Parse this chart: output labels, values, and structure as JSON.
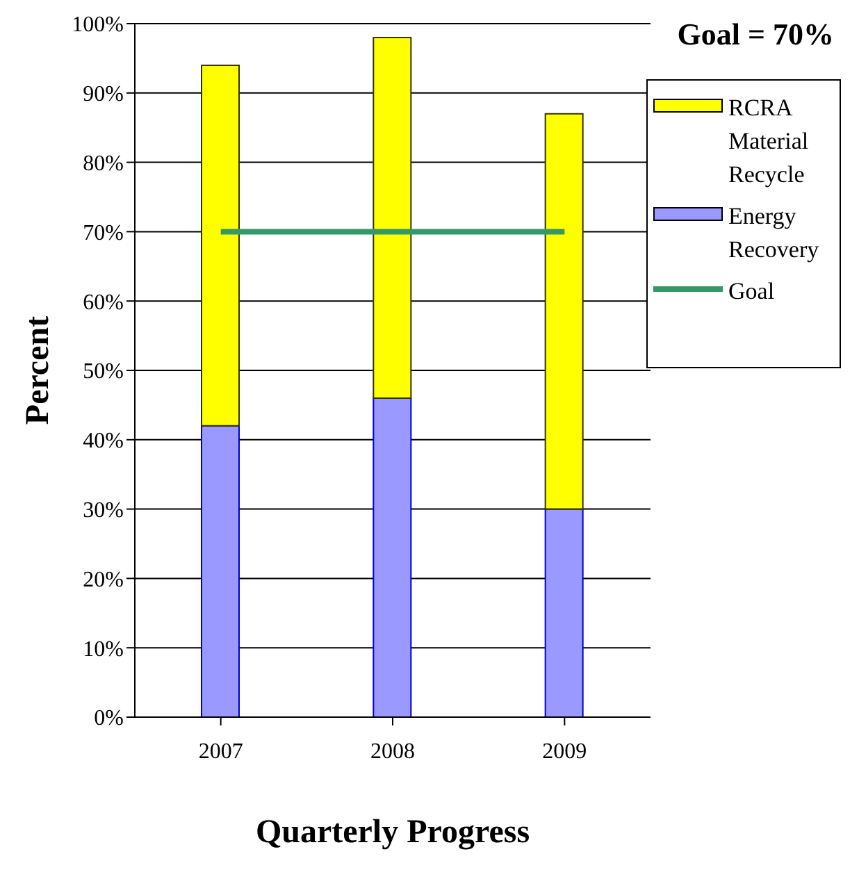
{
  "chart_data": {
    "type": "bar",
    "xlabel": "Quarterly Progress",
    "ylabel": "Percent",
    "annotations": [
      "Goal = 70%"
    ],
    "categories": [
      "2007",
      "2008",
      "2009"
    ],
    "stacked": true,
    "series": [
      {
        "name": "Energy Recovery",
        "color": "#9999ff",
        "values": [
          42,
          46,
          30
        ]
      },
      {
        "name": "RCRA Material Recycle",
        "color": "#ffff00",
        "values": [
          52,
          52,
          57
        ]
      },
      {
        "name": "Goal",
        "type": "line",
        "color": "#339966",
        "values": [
          70,
          70,
          70
        ]
      }
    ],
    "ylim": [
      0,
      100
    ],
    "yticks": [
      {
        "value": 0,
        "label": "0%"
      },
      {
        "value": 10,
        "label": "10%"
      },
      {
        "value": 20,
        "label": "20%"
      },
      {
        "value": 30,
        "label": "30%"
      },
      {
        "value": 40,
        "label": "40%"
      },
      {
        "value": 50,
        "label": "50%"
      },
      {
        "value": 60,
        "label": "60%"
      },
      {
        "value": 70,
        "label": "70%"
      },
      {
        "value": 80,
        "label": "80%"
      },
      {
        "value": 90,
        "label": "90%"
      },
      {
        "value": 100,
        "label": "100%"
      }
    ],
    "grid": "y",
    "legend": "top right"
  }
}
